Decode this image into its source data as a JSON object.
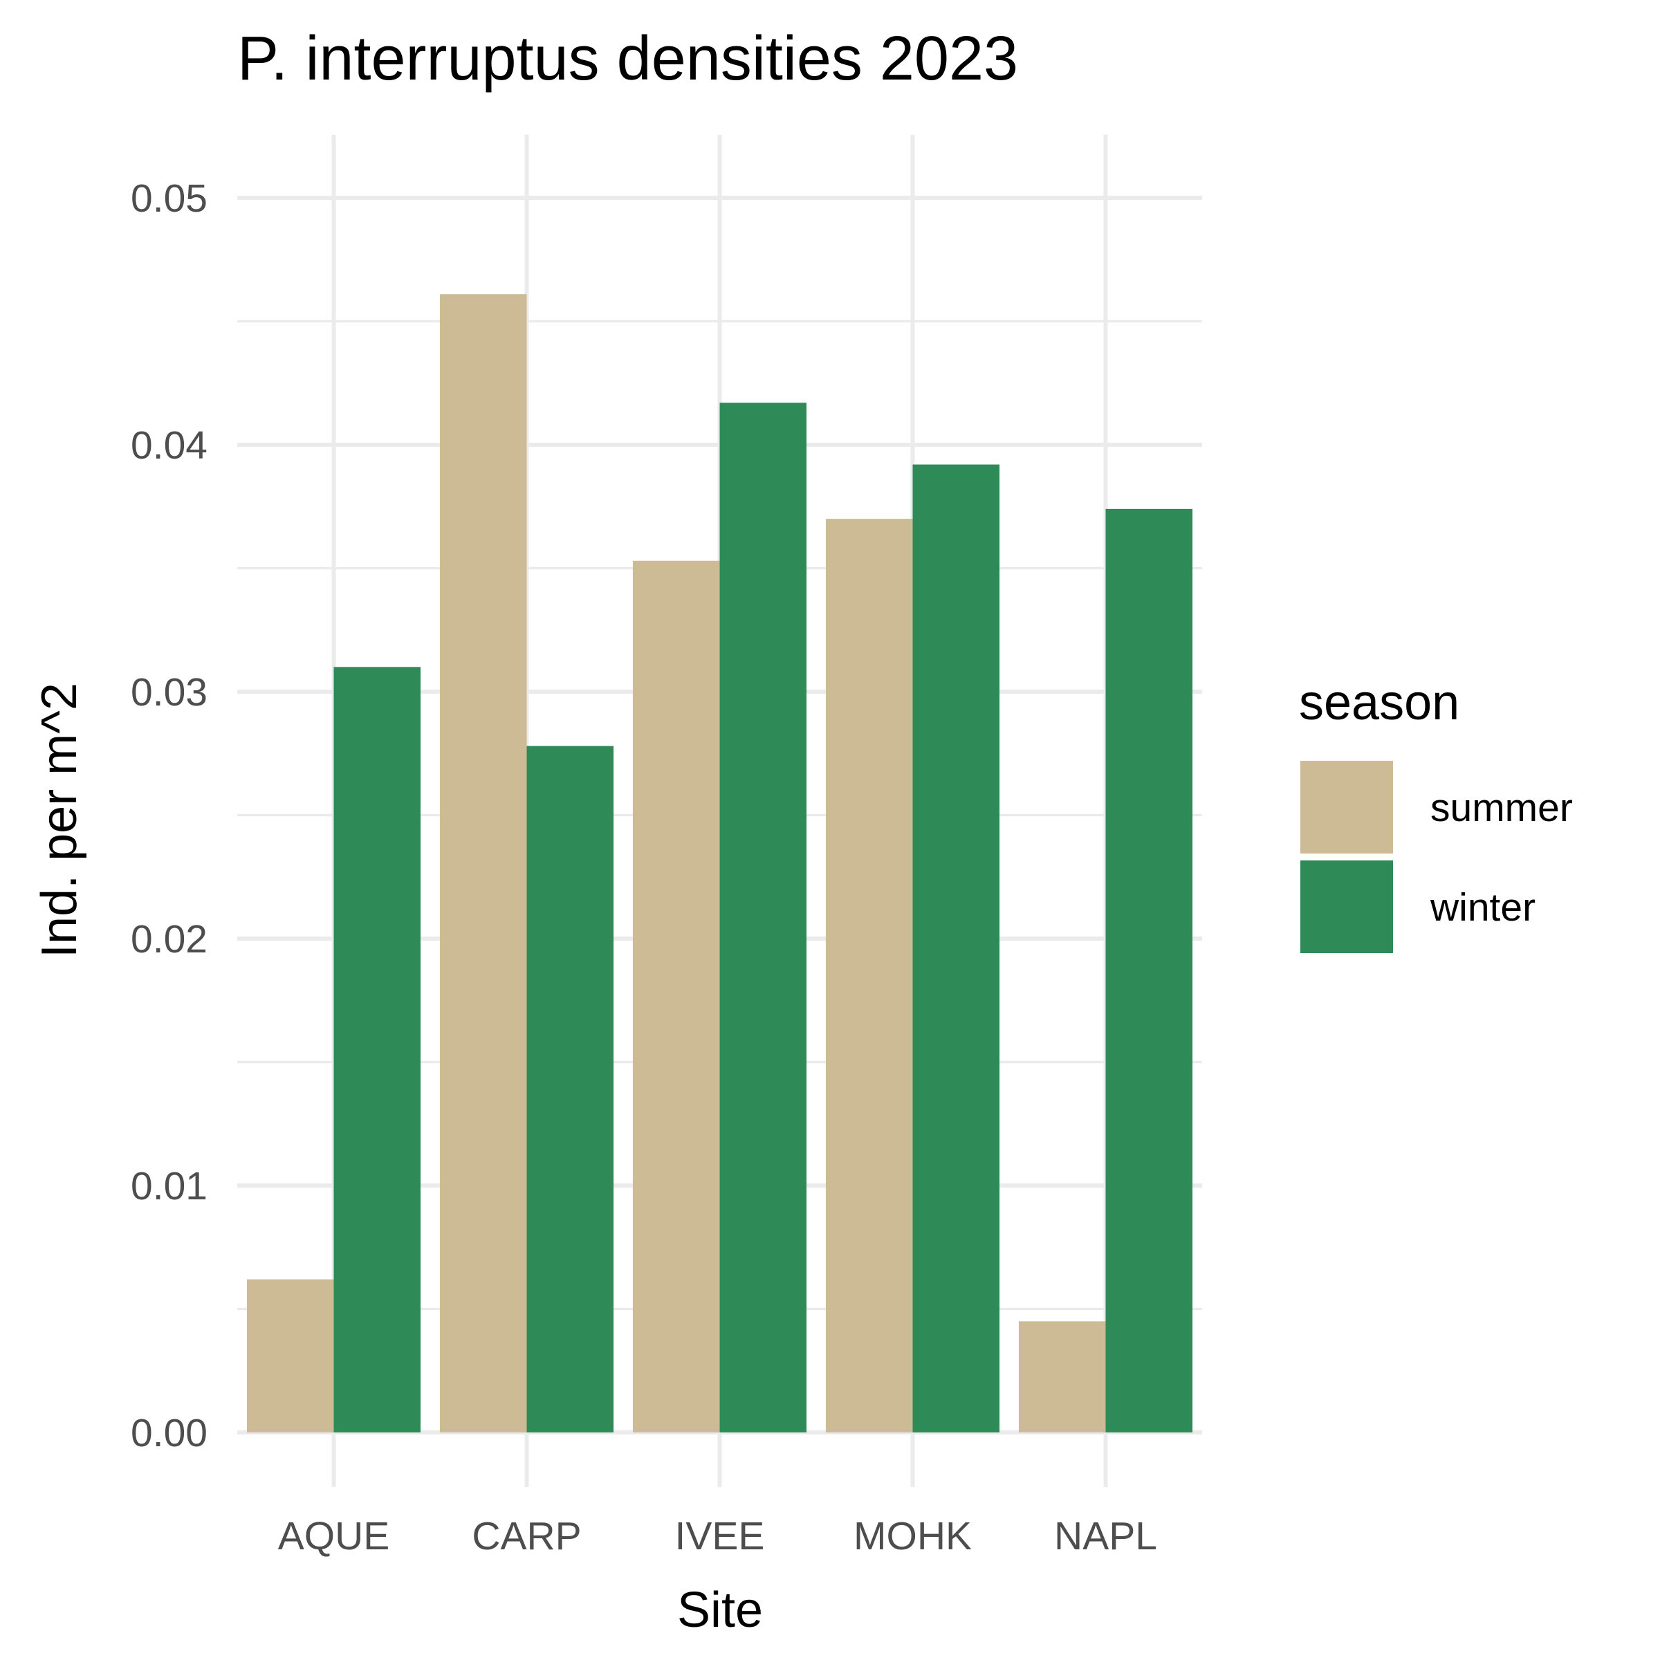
{
  "chart_data": {
    "type": "bar",
    "title": "P. interruptus densities 2023",
    "xlabel": "Site",
    "ylabel": "Ind. per m^2",
    "categories": [
      "AQUE",
      "CARP",
      "IVEE",
      "MOHK",
      "NAPL"
    ],
    "series": [
      {
        "name": "summer",
        "color": "#cdbb96",
        "values": [
          0.0062,
          0.0461,
          0.0353,
          0.037,
          0.0045
        ]
      },
      {
        "name": "winter",
        "color": "#2e8b57",
        "values": [
          0.031,
          0.0278,
          0.0417,
          0.0392,
          0.0374
        ]
      }
    ],
    "ylim": [
      0,
      0.0525
    ],
    "yticks": [
      "0.00",
      "0.01",
      "0.02",
      "0.03",
      "0.04",
      "0.05"
    ],
    "ytick_values": [
      0,
      0.01,
      0.02,
      0.03,
      0.04,
      0.05
    ],
    "grid": true,
    "legend": {
      "title": "season",
      "placement": "right"
    },
    "bar_layout": "dodge"
  }
}
